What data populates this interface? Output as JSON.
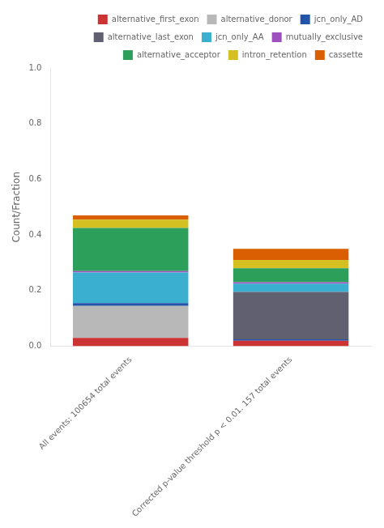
{
  "chart_data": {
    "type": "bar",
    "stacked": true,
    "ylabel": "Count/Fraction",
    "categories": [
      "All events: 100654 total events",
      "Corrected p-value threshold p < 0.01. 157 total events"
    ],
    "series": [
      {
        "name": "alternative_first_exon",
        "color": "#cc3333",
        "values": [
          0.03,
          0.02
        ]
      },
      {
        "name": "alternative_donor",
        "color": "#b8b8b8",
        "values": [
          0.115,
          0.0
        ]
      },
      {
        "name": "jcn_only_AD",
        "color": "#2255aa",
        "values": [
          0.01,
          0.005
        ]
      },
      {
        "name": "alternative_last_exon",
        "color": "#606070",
        "values": [
          0.0,
          0.17
        ]
      },
      {
        "name": "jcn_only_AA",
        "color": "#3aafcf",
        "values": [
          0.11,
          0.03
        ]
      },
      {
        "name": "mutually_exclusive",
        "color": "#9e50bf",
        "values": [
          0.005,
          0.005
        ]
      },
      {
        "name": "alternative_acceptor",
        "color": "#2ca05a",
        "values": [
          0.155,
          0.05
        ]
      },
      {
        "name": "intron_retention",
        "color": "#d4c020",
        "values": [
          0.03,
          0.03
        ]
      },
      {
        "name": "cassette",
        "color": "#d95f02",
        "values": [
          0.015,
          0.04
        ]
      }
    ],
    "ylim": [
      0,
      1.0
    ],
    "yticks": [
      {
        "value": 0.0,
        "label": "0.0"
      },
      0.2,
      0.4,
      0.6,
      0.8,
      {
        "value": 1.0,
        "label": "1.0"
      }
    ],
    "grid": false,
    "legend": "upper right"
  }
}
